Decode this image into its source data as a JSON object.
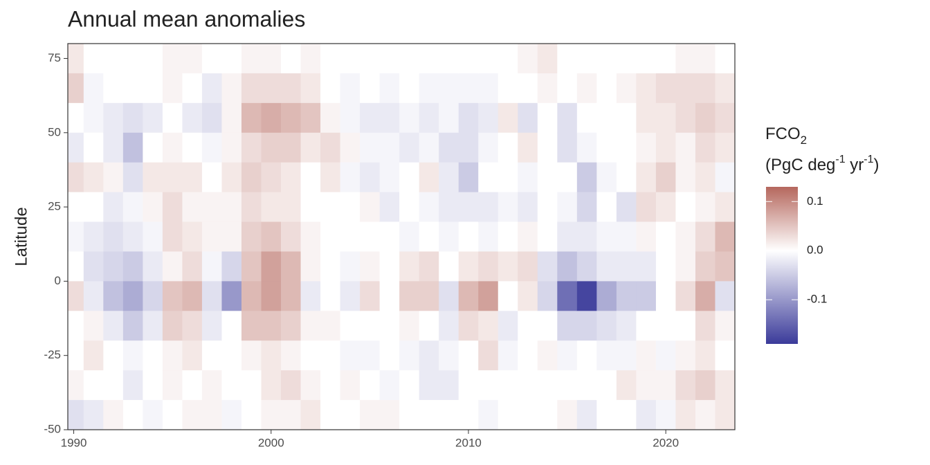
{
  "chart_data": {
    "type": "heatmap",
    "title": "Annual mean anomalies",
    "y_label": "Latitude",
    "legend": {
      "title": [
        "FCO",
        "2"
      ],
      "units": [
        "(PgC deg",
        "-1",
        " yr",
        "-1",
        ")"
      ]
    },
    "x": [
      1990,
      1991,
      1992,
      1993,
      1994,
      1995,
      1996,
      1997,
      1998,
      1999,
      2000,
      2001,
      2002,
      2003,
      2004,
      2005,
      2006,
      2007,
      2008,
      2009,
      2010,
      2011,
      2012,
      2013,
      2014,
      2015,
      2016,
      2017,
      2018,
      2019,
      2020,
      2021,
      2022,
      2023
    ],
    "y": [
      75,
      65,
      55,
      45,
      35,
      25,
      15,
      5,
      -5,
      -15,
      -25,
      -35,
      -45
    ],
    "values": [
      [
        0.02,
        0.04,
        0,
        -0.02,
        0.03,
        0,
        -0.01,
        0,
        0.03,
        0,
        0,
        0.01,
        -0.03
      ],
      [
        0,
        -0.01,
        -0.01,
        0,
        0.02,
        0,
        -0.02,
        -0.03,
        -0.02,
        0.01,
        0.02,
        0,
        -0.02
      ],
      [
        0,
        0,
        -0.02,
        -0.02,
        0.01,
        -0.02,
        -0.03,
        -0.04,
        -0.06,
        -0.02,
        0,
        0,
        0.01
      ],
      [
        0,
        0,
        -0.03,
        -0.06,
        -0.03,
        -0.01,
        -0.02,
        -0.05,
        -0.08,
        -0.05,
        -0.01,
        -0.02,
        0
      ],
      [
        0,
        0,
        -0.02,
        0,
        0.02,
        0.01,
        -0.01,
        -0.02,
        -0.04,
        -0.02,
        0,
        0,
        -0.01
      ],
      [
        0.01,
        0.01,
        0,
        0.01,
        0.02,
        0.03,
        0.03,
        0.01,
        0.05,
        0.04,
        0.01,
        0.01,
        0
      ],
      [
        0.01,
        0,
        -0.02,
        0,
        0.02,
        0.01,
        0.02,
        0.03,
        0.06,
        0.03,
        0.02,
        0,
        0.01
      ],
      [
        0,
        -0.02,
        -0.03,
        -0.01,
        0,
        0.01,
        0.01,
        -0.01,
        -0.03,
        -0.02,
        0,
        0.01,
        0.01
      ],
      [
        0,
        0.01,
        0.01,
        0.01,
        0.02,
        0.01,
        0.01,
        -0.04,
        -0.1,
        0,
        0,
        0,
        -0.01
      ],
      [
        0.01,
        0.03,
        0.06,
        0.03,
        0.04,
        0.03,
        0.04,
        0.05,
        0.06,
        0.05,
        0.01,
        0,
        0
      ],
      [
        0.01,
        0.03,
        0.07,
        0.04,
        0.03,
        0.02,
        0.05,
        0.08,
        0.08,
        0.05,
        0.02,
        0.02,
        0.01
      ],
      [
        0,
        0.03,
        0.06,
        0.04,
        0.02,
        0.02,
        0.03,
        0.06,
        0.06,
        0.04,
        0.01,
        0.03,
        0.01
      ],
      [
        0.01,
        0.02,
        0.05,
        0.02,
        0,
        0,
        0.01,
        0.01,
        -0.02,
        0.01,
        0,
        0.01,
        0.02
      ],
      [
        0,
        0,
        0.01,
        0.03,
        0.02,
        0,
        0,
        0,
        0,
        0.01,
        0,
        0,
        0
      ],
      [
        0,
        -0.01,
        -0.01,
        0.01,
        -0.01,
        0,
        0,
        -0.01,
        -0.02,
        0,
        -0.01,
        0.01,
        0
      ],
      [
        0,
        0,
        -0.02,
        -0.01,
        -0.02,
        0.01,
        0,
        0.01,
        0.03,
        0,
        -0.01,
        0,
        0.01
      ],
      [
        0,
        -0.01,
        -0.02,
        -0.01,
        -0.01,
        -0.02,
        0,
        0,
        0,
        0,
        0,
        -0.01,
        0.01
      ],
      [
        0,
        0,
        -0.01,
        -0.02,
        0,
        0,
        -0.01,
        0.02,
        0.04,
        0.01,
        -0.01,
        0,
        0
      ],
      [
        0,
        -0.01,
        -0.02,
        -0.01,
        0.02,
        -0.01,
        0,
        0.03,
        0.04,
        0,
        -0.02,
        -0.02,
        0
      ],
      [
        0,
        -0.01,
        -0.01,
        -0.03,
        -0.02,
        -0.02,
        -0.01,
        0,
        -0.03,
        -0.02,
        -0.01,
        -0.02,
        0
      ],
      [
        0,
        -0.01,
        -0.03,
        -0.03,
        -0.05,
        -0.02,
        0,
        0.02,
        0.06,
        0.03,
        0,
        0,
        0
      ],
      [
        0,
        -0.01,
        -0.02,
        -0.01,
        0,
        -0.02,
        -0.01,
        0.03,
        0.08,
        0.02,
        0.03,
        0,
        -0.01
      ],
      [
        0,
        0,
        0.02,
        0,
        0,
        -0.01,
        0,
        0.02,
        0,
        -0.02,
        -0.01,
        0,
        0
      ],
      [
        0.01,
        0,
        -0.03,
        0.02,
        -0.01,
        -0.02,
        0.01,
        0.03,
        0.02,
        0,
        0,
        0,
        0
      ],
      [
        0.02,
        0.01,
        0,
        0,
        0,
        0,
        0,
        -0.03,
        -0.04,
        0,
        0.01,
        0,
        0
      ],
      [
        0,
        0,
        -0.03,
        -0.03,
        0,
        -0.01,
        -0.02,
        -0.06,
        -0.14,
        -0.04,
        -0.01,
        0,
        0.01
      ],
      [
        0,
        0.01,
        0,
        -0.01,
        -0.05,
        -0.04,
        -0.02,
        -0.04,
        -0.18,
        -0.04,
        0,
        0,
        -0.02
      ],
      [
        0,
        0,
        0,
        0,
        -0.01,
        0,
        -0.01,
        -0.02,
        -0.08,
        -0.03,
        -0.01,
        0,
        0
      ],
      [
        0,
        0.01,
        0,
        0,
        0,
        -0.03,
        -0.01,
        -0.02,
        -0.05,
        -0.02,
        -0.01,
        0.02,
        0
      ],
      [
        0,
        0.02,
        0.02,
        0.01,
        0.02,
        0.03,
        0.01,
        -0.02,
        -0.05,
        0,
        0.01,
        0.01,
        -0.02
      ],
      [
        0,
        0.03,
        0.02,
        0.02,
        0.04,
        0.02,
        0,
        0,
        0,
        0,
        -0.01,
        0.01,
        -0.01
      ],
      [
        0.01,
        0.03,
        0.03,
        0.01,
        0.01,
        0,
        0.01,
        0.01,
        0.03,
        0,
        0.01,
        0.03,
        0.02
      ],
      [
        0.01,
        0.03,
        0.04,
        0.03,
        0.02,
        0.01,
        0.03,
        0.04,
        0.07,
        0.03,
        0.02,
        0.04,
        0.01
      ],
      [
        0,
        0.02,
        0.03,
        0.02,
        -0.01,
        0.02,
        0.06,
        0.05,
        -0.03,
        0.01,
        0,
        0.02,
        0.02
      ]
    ],
    "xlim": [
      1989.7,
      2023.5
    ],
    "ylim": [
      -50,
      80
    ],
    "xticks": [
      1990,
      2000,
      2010,
      2020
    ],
    "yticks": [
      -50,
      -25,
      0,
      25,
      50,
      75
    ],
    "colorlim": [
      -0.19,
      0.13
    ],
    "colorticks": [
      0.1,
      {
        "value": 0,
        "label": "0.0"
      },
      -0.1
    ],
    "colors": {
      "low": "#3b3b9a",
      "mid": "#ffffff",
      "high": "#b5675d"
    }
  }
}
